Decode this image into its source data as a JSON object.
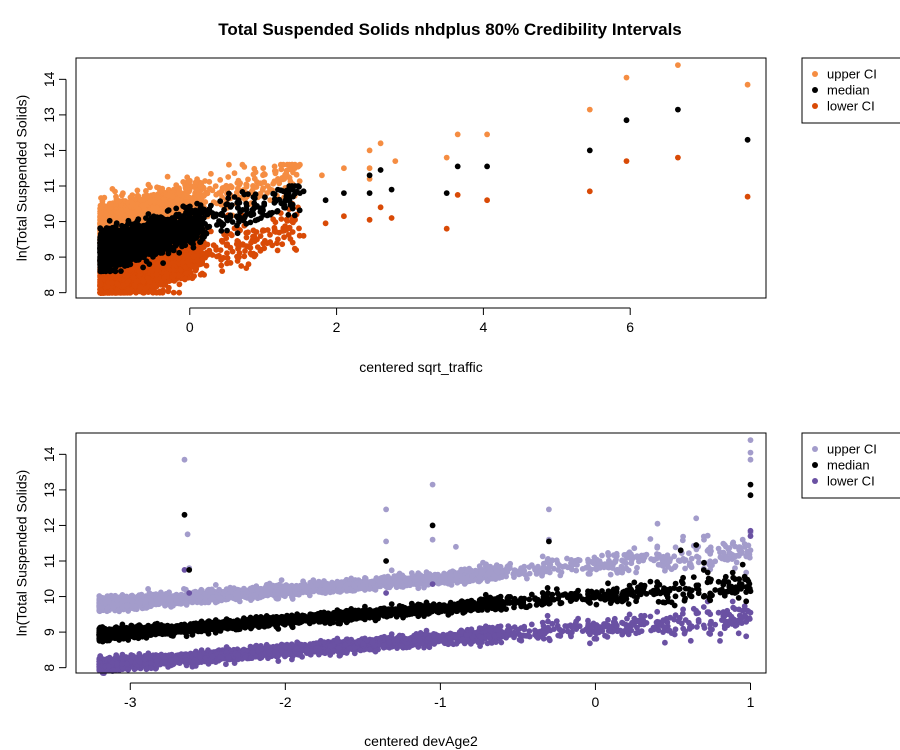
{
  "figure": {
    "title": "Total Suspended Solids nhdplus 80% Credibility Intervals"
  },
  "colors": {
    "orange_upper": "#f58d42",
    "orange_lower": "#d94a06",
    "median": "#000000",
    "purple_upper": "#a39ccb",
    "purple_lower": "#6a51a3"
  },
  "chart_data": [
    {
      "type": "scatter",
      "title": "Total Suspended Solids nhdplus 80% Credibility Intervals",
      "xlabel": "centered sqrt_traffic",
      "ylabel": "ln(Total Suspended Solids)",
      "xlim": [
        -1.55,
        7.85
      ],
      "ylim": [
        7.85,
        14.6
      ],
      "x_ticks": [
        0,
        2,
        4,
        6
      ],
      "y_ticks": [
        8,
        9,
        10,
        11,
        12,
        13,
        14
      ],
      "grid": false,
      "legend_position": "outside-top-right",
      "legend": [
        "upper CI",
        "median",
        "lower CI"
      ],
      "note": "dense cloud of several thousand points between x = -1.2 and 1.6; sparse outlying points listed below",
      "series": [
        {
          "name": "upper CI",
          "color": "#f58d42",
          "points": [
            [
              1.0,
              11.5
            ],
            [
              1.2,
              11.2
            ],
            [
              1.5,
              11.6
            ],
            [
              1.8,
              11.3
            ],
            [
              2.1,
              11.5
            ],
            [
              2.45,
              11.5
            ],
            [
              2.45,
              12.0
            ],
            [
              2.6,
              12.2
            ],
            [
              2.45,
              11.2
            ],
            [
              2.8,
              11.7
            ],
            [
              3.5,
              11.8
            ],
            [
              3.65,
              12.45
            ],
            [
              4.05,
              12.45
            ],
            [
              5.45,
              13.15
            ],
            [
              5.95,
              14.05
            ],
            [
              6.65,
              14.4
            ],
            [
              7.6,
              13.85
            ]
          ]
        },
        {
          "name": "median",
          "color": "#000000",
          "points": [
            [
              1.2,
              10.9
            ],
            [
              1.5,
              10.8
            ],
            [
              1.55,
              10.85
            ],
            [
              1.85,
              10.6
            ],
            [
              2.1,
              10.8
            ],
            [
              2.45,
              10.8
            ],
            [
              2.45,
              11.3
            ],
            [
              2.6,
              11.45
            ],
            [
              2.75,
              10.9
            ],
            [
              3.5,
              10.8
            ],
            [
              3.65,
              11.55
            ],
            [
              4.05,
              11.55
            ],
            [
              5.45,
              12.0
            ],
            [
              5.95,
              12.85
            ],
            [
              6.65,
              13.15
            ],
            [
              7.6,
              12.3
            ]
          ]
        },
        {
          "name": "lower CI",
          "color": "#d94a06",
          "points": [
            [
              0.7,
              8.75
            ],
            [
              0.8,
              8.8
            ],
            [
              1.2,
              9.5
            ],
            [
              1.45,
              9.2
            ],
            [
              1.55,
              9.6
            ],
            [
              1.85,
              9.95
            ],
            [
              2.1,
              10.15
            ],
            [
              2.45,
              10.05
            ],
            [
              2.6,
              10.4
            ],
            [
              2.75,
              10.1
            ],
            [
              3.5,
              9.8
            ],
            [
              3.65,
              10.75
            ],
            [
              4.05,
              10.6
            ],
            [
              5.45,
              10.85
            ],
            [
              5.95,
              11.7
            ],
            [
              6.65,
              11.8
            ],
            [
              7.6,
              10.7
            ]
          ]
        }
      ]
    },
    {
      "type": "scatter",
      "xlabel": "centered devAge2",
      "ylabel": "ln(Total Suspended Solids)",
      "xlim": [
        -3.35,
        1.1
      ],
      "ylim": [
        7.85,
        14.6
      ],
      "x_ticks": [
        -3,
        -2,
        -1,
        0,
        1
      ],
      "y_ticks": [
        8,
        9,
        10,
        11,
        12,
        13,
        14
      ],
      "grid": false,
      "legend_position": "outside-top-right",
      "legend": [
        "upper CI",
        "median",
        "lower CI"
      ],
      "note": "three bands rising linearly with x; outlying points listed below",
      "series": [
        {
          "name": "upper CI",
          "color": "#a39ccb",
          "points": [
            [
              -2.65,
              13.85
            ],
            [
              -2.63,
              11.75
            ],
            [
              -2.62,
              10.8
            ],
            [
              -1.05,
              13.15
            ],
            [
              -1.05,
              11.6
            ],
            [
              -1.35,
              12.45
            ],
            [
              -1.35,
              11.55
            ],
            [
              -0.3,
              12.45
            ],
            [
              -0.3,
              11.6
            ],
            [
              -0.9,
              11.4
            ],
            [
              0.4,
              12.05
            ],
            [
              0.65,
              12.2
            ],
            [
              0.7,
              11.6
            ],
            [
              0.85,
              11.05
            ],
            [
              1.0,
              14.4
            ],
            [
              1.0,
              14.05
            ],
            [
              1.0,
              13.85
            ],
            [
              1.0,
              11.8
            ],
            [
              1.0,
              11.3
            ],
            [
              0.95,
              11.6
            ],
            [
              0.9,
              10.8
            ]
          ]
        },
        {
          "name": "median",
          "color": "#000000",
          "points": [
            [
              -2.65,
              12.3
            ],
            [
              -2.62,
              10.75
            ],
            [
              -1.05,
              12.0
            ],
            [
              -1.35,
              11.0
            ],
            [
              -0.3,
              11.55
            ],
            [
              0.55,
              11.3
            ],
            [
              0.65,
              11.45
            ],
            [
              0.7,
              10.95
            ],
            [
              1.0,
              13.15
            ],
            [
              1.0,
              12.85
            ],
            [
              1.0,
              10.15
            ],
            [
              0.95,
              10.9
            ],
            [
              0.9,
              10.1
            ]
          ]
        },
        {
          "name": "lower CI",
          "color": "#6a51a3",
          "points": [
            [
              -2.65,
              10.75
            ],
            [
              -2.62,
              10.1
            ],
            [
              -1.35,
              10.1
            ],
            [
              -1.05,
              10.35
            ],
            [
              1.0,
              11.85
            ],
            [
              1.0,
              11.7
            ],
            [
              1.0,
              9.55
            ],
            [
              0.95,
              9.6
            ],
            [
              0.85,
              9.6
            ],
            [
              0.65,
              9.6
            ]
          ]
        }
      ]
    }
  ]
}
